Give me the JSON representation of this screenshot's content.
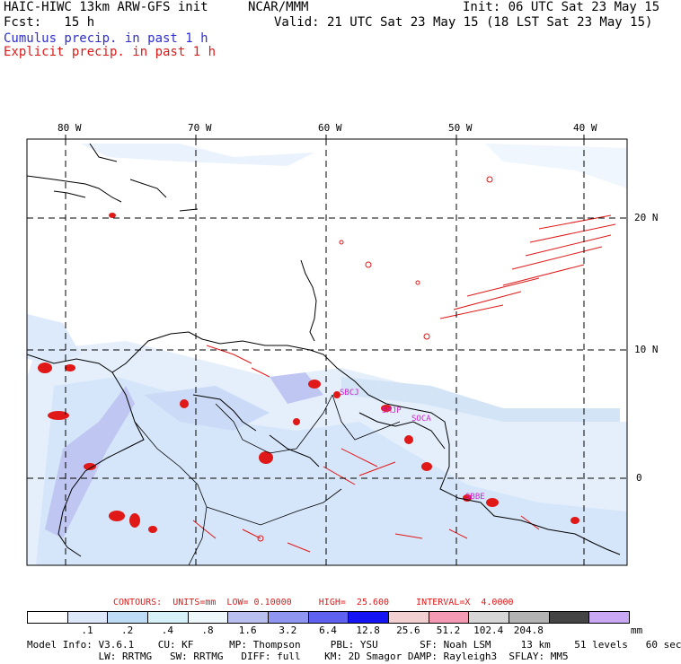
{
  "header": {
    "model": "HAIC-HIWC 13km ARW-GFS init",
    "org": "NCAR/MMM",
    "init": "Init: 06 UTC Sat 23 May 15",
    "fcst": "Fcst:   15 h",
    "valid": "Valid: 21 UTC Sat 23 May 15 (18 LST Sat 23 May 15)",
    "cumulus": "Cumulus precip. in past 1 h",
    "explicit": "Explicit precip. in past 1 h"
  },
  "map": {
    "lon_labels": [
      "80 W",
      "70 W",
      "60 W",
      "50 W",
      "40 W"
    ],
    "lat_labels": [
      "20 N",
      "10 N",
      "0"
    ],
    "stations": [
      "SBCJ",
      "SMJP",
      "SOCA",
      "SBBE"
    ]
  },
  "contours": {
    "text": "CONTOURS:  UNITS=mm  LOW= 0.10000     HIGH=  25.600     INTERVAL=X  4.0000"
  },
  "colorbar": {
    "colors": [
      "#ffffff",
      "#dde9fb",
      "#bfdcf7",
      "#d6f1f8",
      "#eef8fb",
      "#b9c0f0",
      "#8f95f0",
      "#5f62f0",
      "#1414f5",
      "#f2cfd0",
      "#f59ab4",
      "#d6d6d6",
      "#b3b3b3",
      "#444444",
      "#c8a8f2"
    ],
    "labels": [
      ".1",
      ".2",
      ".4",
      ".8",
      "1.6",
      "3.2",
      "6.4",
      "12.8",
      "25.6",
      "51.2",
      "102.4",
      "204.8"
    ],
    "unit": "mm"
  },
  "model_info": {
    "line1": "Model Info: V3.6.1    CU: KF      MP: Thompson     PBL: YSU       SF: Noah LSM     13 km    51 levels   60 sec",
    "line2": "            LW: RRTMG   SW: RRTMG   DIFF: full    KM: 2D Smagor DAMP: Rayleigh3  SFLAY: MM5"
  },
  "colors": {
    "cumulus": "#2f2fcf",
    "explicit": "#e01818",
    "station": "#d020d0"
  }
}
